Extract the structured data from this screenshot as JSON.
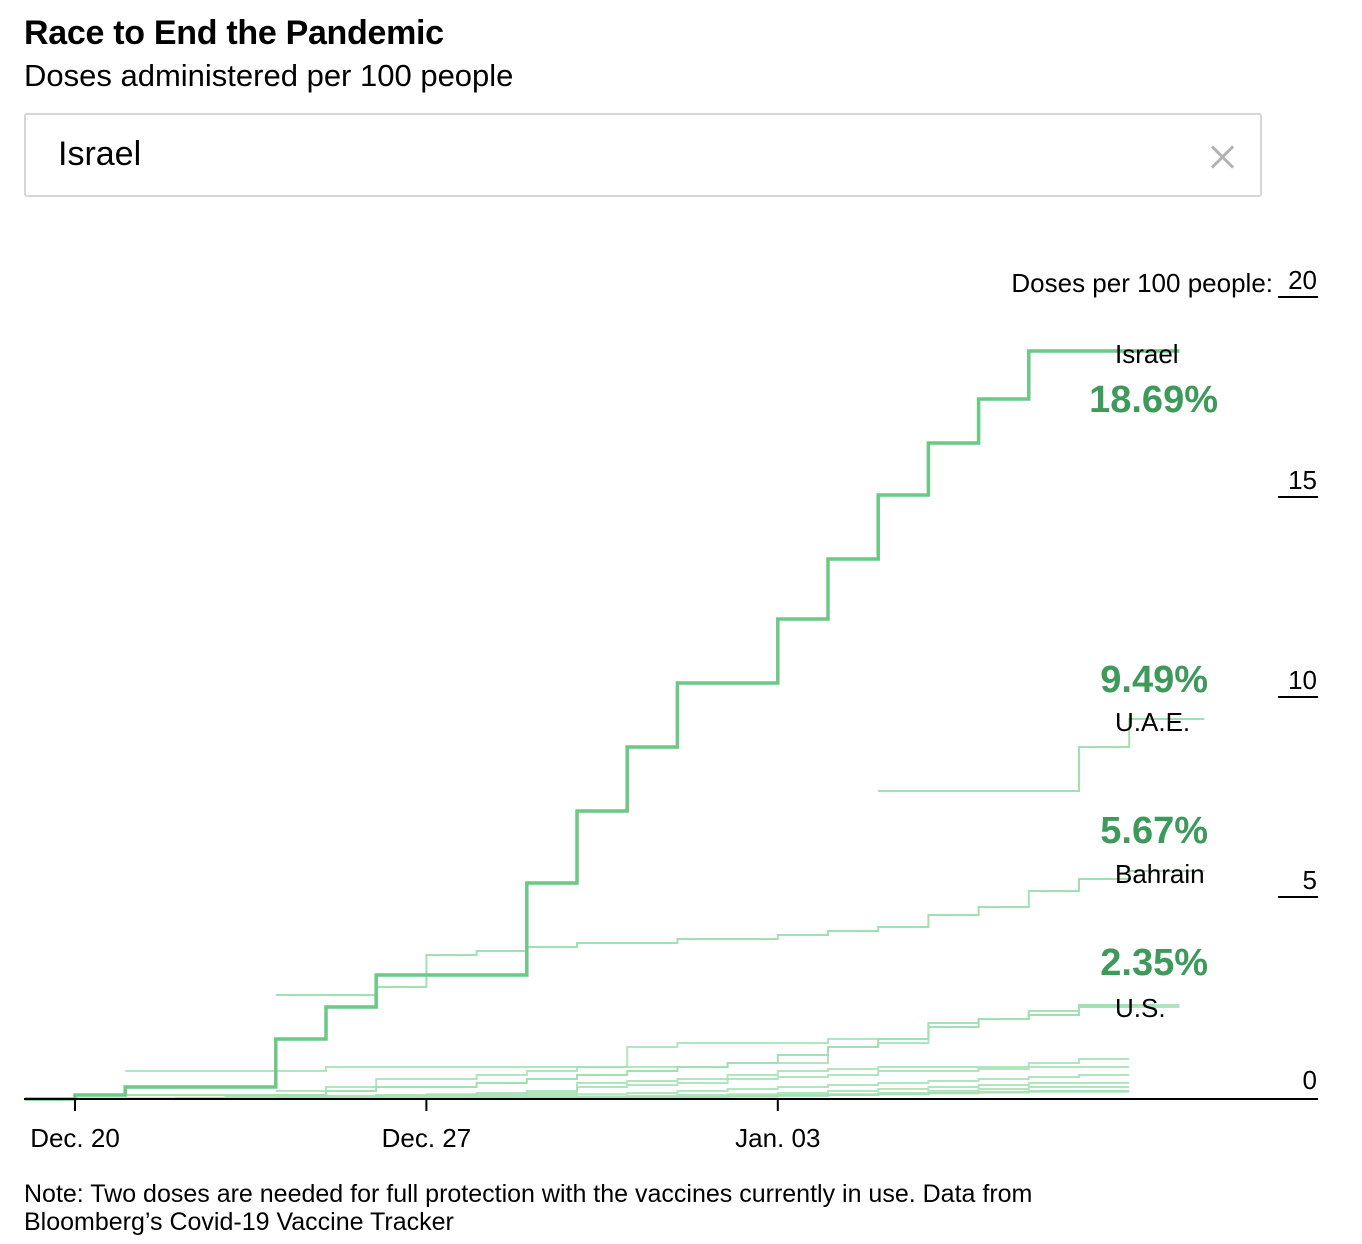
{
  "header": {
    "title": "Race to End the Pandemic",
    "subtitle": "Doses administered per 100 people"
  },
  "search": {
    "value": "Israel",
    "clear_icon": "close-icon"
  },
  "note": "Note: Two doses are needed for full protection with the vaccines currently in use. Data from Bloomberg’s Covid-19 Vaccine Tracker",
  "chart_data": {
    "type": "line",
    "step": true,
    "y_axis_title": "Doses per 100 people:",
    "ylim": [
      0,
      20
    ],
    "yticks": [
      0,
      5,
      10,
      15,
      20
    ],
    "y_axis_side": "right",
    "x_ticks": [
      {
        "label": "Dec. 20",
        "day": 0
      },
      {
        "label": "Dec. 27",
        "day": 7
      },
      {
        "label": "Jan. 03",
        "day": 14
      }
    ],
    "colors": {
      "highlight": "#6cc985",
      "other": "#a3e0b1",
      "value_label": "#3d9a5a",
      "axis": "#000000"
    },
    "highlighted": {
      "name": "Israel",
      "value_label": "18.69%",
      "x": [
        "Dec. 19",
        "Dec. 20",
        "Dec. 21",
        "Dec. 22",
        "Dec. 23",
        "Dec. 24",
        "Dec. 25",
        "Dec. 26",
        "Dec. 27",
        "Dec. 28",
        "Dec. 29",
        "Dec. 30",
        "Dec. 31",
        "Jan. 01",
        "Jan. 02",
        "Jan. 03",
        "Jan. 04",
        "Jan. 05",
        "Jan. 06",
        "Jan. 07",
        "Jan. 08",
        "Jan. 09",
        "Jan. 10"
      ],
      "values": [
        0,
        0.1,
        0.3,
        0.3,
        0.3,
        1.5,
        2.3,
        3.1,
        3.1,
        3.1,
        5.4,
        7.2,
        8.8,
        10.4,
        10.4,
        12.0,
        13.5,
        15.1,
        16.4,
        17.5,
        18.7,
        18.7,
        18.7
      ]
    },
    "labeled_series": [
      {
        "name": "U.A.E.",
        "value_label": "9.49%",
        "start_day": 16,
        "values": [
          7.7,
          7.7,
          7.7,
          7.7,
          8.8,
          9.5
        ]
      },
      {
        "name": "Bahrain",
        "value_label": "5.67%",
        "start_day": 4,
        "values": [
          2.6,
          2.6,
          2.8,
          3.6,
          3.7,
          3.8,
          3.9,
          3.9,
          4.0,
          4.0,
          4.1,
          4.2,
          4.3,
          4.6,
          4.8,
          5.2,
          5.5,
          5.7
        ]
      },
      {
        "name": "U.S.",
        "value_label": "2.35%",
        "start_day": 1,
        "values": [
          0.1,
          0.1,
          0.1,
          0.1,
          0.2,
          0.3,
          0.3,
          0.4,
          0.5,
          0.6,
          0.7,
          0.8,
          0.9,
          1.1,
          1.3,
          1.5,
          1.8,
          2.0,
          2.1,
          2.35
        ]
      }
    ],
    "other_series": [
      {
        "start_day": 1,
        "values": [
          0.7,
          0.7,
          0.7,
          0.7,
          0.8,
          0.8,
          0.8,
          0.8,
          0.8,
          0.8,
          0.8,
          0.8,
          0.9,
          0.9,
          1.3,
          1.4,
          1.9,
          2.0,
          2.2,
          2.3,
          2.35
        ]
      },
      {
        "start_day": 4,
        "values": [
          0.2,
          0.3,
          0.5,
          0.5,
          0.6,
          0.7,
          0.8,
          1.3,
          1.4,
          1.4,
          1.4,
          1.5,
          1.5,
          1.9,
          2.0,
          2.2,
          2.3,
          2.3
        ]
      },
      {
        "start_day": 0,
        "values": [
          0.02,
          0.02,
          0.03,
          0.05,
          0.06,
          0.08,
          0.1,
          0.12,
          0.15,
          0.2,
          0.4,
          0.45,
          0.5,
          0.6,
          0.7,
          0.75,
          0.8,
          0.8,
          0.8,
          0.9,
          1.0
        ]
      },
      {
        "start_day": 2,
        "values": [
          0.02,
          0.03,
          0.05,
          0.06,
          0.08,
          0.1,
          0.12,
          0.15,
          0.3,
          0.35,
          0.4,
          0.5,
          0.55,
          0.6,
          0.7,
          0.7,
          0.75,
          0.8,
          0.8
        ]
      },
      {
        "start_day": 3,
        "values": [
          0.01,
          0.02,
          0.03,
          0.05,
          0.06,
          0.08,
          0.1,
          0.12,
          0.15,
          0.2,
          0.25,
          0.3,
          0.35,
          0.4,
          0.45,
          0.5,
          0.55,
          0.6
        ]
      },
      {
        "start_day": 5,
        "values": [
          0.01,
          0.02,
          0.03,
          0.04,
          0.05,
          0.06,
          0.08,
          0.1,
          0.12,
          0.15,
          0.2,
          0.25,
          0.3,
          0.35,
          0.4,
          0.4
        ]
      },
      {
        "start_day": 6,
        "values": [
          0.01,
          0.01,
          0.02,
          0.03,
          0.04,
          0.05,
          0.06,
          0.08,
          0.1,
          0.12,
          0.15,
          0.2,
          0.25,
          0.3,
          0.3
        ]
      },
      {
        "start_day": 8,
        "values": [
          0.01,
          0.02,
          0.03,
          0.04,
          0.05,
          0.06,
          0.08,
          0.1,
          0.12,
          0.15,
          0.18,
          0.2,
          0.2
        ]
      },
      {
        "start_day": 10,
        "values": [
          0.01,
          0.02,
          0.04,
          0.06,
          0.08,
          0.1,
          0.12,
          0.14,
          0.16,
          0.18,
          0.18
        ]
      }
    ]
  }
}
